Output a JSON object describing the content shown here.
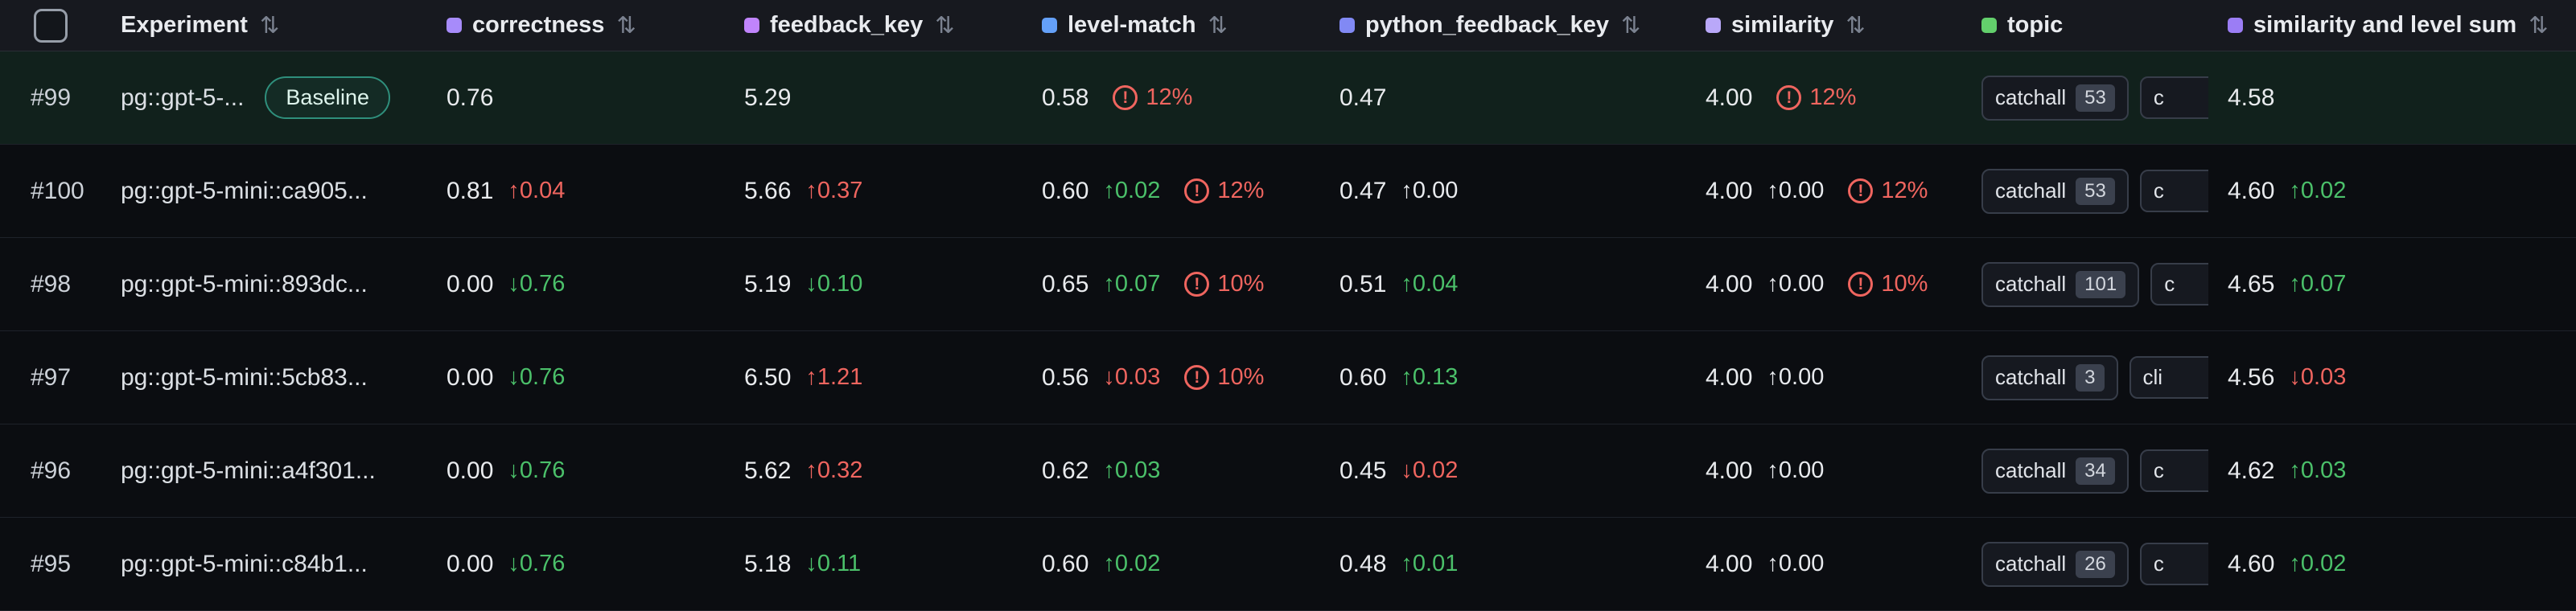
{
  "colors": {
    "good": "#4bc06a",
    "bad": "#ef655f",
    "flat": "#e8eaee",
    "warn": "#ef655f"
  },
  "icons": {
    "sort": "⇅",
    "warning_mark": "!"
  },
  "header": {
    "experiment": {
      "label": "Experiment"
    },
    "metrics": [
      {
        "label": "correctness",
        "swatch": "#a78bfa"
      },
      {
        "label": "feedback_key",
        "swatch": "#c084fc"
      },
      {
        "label": "level-match",
        "swatch": "#64a0f8"
      },
      {
        "label": "python_feedback_key",
        "swatch": "#8189f4"
      },
      {
        "label": "similarity",
        "swatch": "#b9a8f9"
      },
      {
        "label": "topic",
        "swatch": "#63cf6c"
      },
      {
        "label": "similarity and level sum",
        "swatch": "#9b7df5"
      }
    ]
  },
  "rows": [
    {
      "id": "#99",
      "name": "pg::gpt-5-...",
      "baseline_label": "Baseline",
      "correctness": {
        "value": "0.76"
      },
      "feedback_key": {
        "value": "5.29"
      },
      "level_match": {
        "value": "0.58",
        "warning": "12%"
      },
      "python_feedback_key": {
        "value": "0.47"
      },
      "similarity": {
        "value": "4.00",
        "warning": "12%"
      },
      "topics": [
        {
          "label": "catchall",
          "count": "53"
        },
        {
          "label": "c",
          "count": ""
        }
      ],
      "sum": {
        "value": "4.58"
      }
    },
    {
      "id": "#100",
      "name": "pg::gpt-5-mini::ca905...",
      "correctness": {
        "value": "0.81",
        "delta": "↑0.04",
        "tone": "bad"
      },
      "feedback_key": {
        "value": "5.66",
        "delta": "↑0.37",
        "tone": "bad"
      },
      "level_match": {
        "value": "0.60",
        "delta": "↑0.02",
        "tone": "good",
        "warning": "12%"
      },
      "python_feedback_key": {
        "value": "0.47",
        "delta": "↑0.00",
        "tone": "flat"
      },
      "similarity": {
        "value": "4.00",
        "delta": "↑0.00",
        "tone": "flat",
        "warning": "12%"
      },
      "topics": [
        {
          "label": "catchall",
          "count": "53"
        },
        {
          "label": "c",
          "count": ""
        }
      ],
      "sum": {
        "value": "4.60",
        "delta": "↑0.02",
        "tone": "good"
      }
    },
    {
      "id": "#98",
      "name": "pg::gpt-5-mini::893dc...",
      "correctness": {
        "value": "0.00",
        "delta": "↓0.76",
        "tone": "good"
      },
      "feedback_key": {
        "value": "5.19",
        "delta": "↓0.10",
        "tone": "good"
      },
      "level_match": {
        "value": "0.65",
        "delta": "↑0.07",
        "tone": "good",
        "warning": "10%"
      },
      "python_feedback_key": {
        "value": "0.51",
        "delta": "↑0.04",
        "tone": "good"
      },
      "similarity": {
        "value": "4.00",
        "delta": "↑0.00",
        "tone": "flat",
        "warning": "10%"
      },
      "topics": [
        {
          "label": "catchall",
          "count": "101"
        },
        {
          "label": "c",
          "count": ""
        }
      ],
      "sum": {
        "value": "4.65",
        "delta": "↑0.07",
        "tone": "good"
      }
    },
    {
      "id": "#97",
      "name": "pg::gpt-5-mini::5cb83...",
      "correctness": {
        "value": "0.00",
        "delta": "↓0.76",
        "tone": "good"
      },
      "feedback_key": {
        "value": "6.50",
        "delta": "↑1.21",
        "tone": "bad"
      },
      "level_match": {
        "value": "0.56",
        "delta": "↓0.03",
        "tone": "bad",
        "warning": "10%"
      },
      "python_feedback_key": {
        "value": "0.60",
        "delta": "↑0.13",
        "tone": "good"
      },
      "similarity": {
        "value": "4.00",
        "delta": "↑0.00",
        "tone": "flat"
      },
      "topics": [
        {
          "label": "catchall",
          "count": "3"
        },
        {
          "label": "cli",
          "count": ""
        }
      ],
      "sum": {
        "value": "4.56",
        "delta": "↓0.03",
        "tone": "bad"
      }
    },
    {
      "id": "#96",
      "name": "pg::gpt-5-mini::a4f301...",
      "correctness": {
        "value": "0.00",
        "delta": "↓0.76",
        "tone": "good"
      },
      "feedback_key": {
        "value": "5.62",
        "delta": "↑0.32",
        "tone": "bad"
      },
      "level_match": {
        "value": "0.62",
        "delta": "↑0.03",
        "tone": "good"
      },
      "python_feedback_key": {
        "value": "0.45",
        "delta": "↓0.02",
        "tone": "bad"
      },
      "similarity": {
        "value": "4.00",
        "delta": "↑0.00",
        "tone": "flat"
      },
      "topics": [
        {
          "label": "catchall",
          "count": "34"
        },
        {
          "label": "c",
          "count": ""
        }
      ],
      "sum": {
        "value": "4.62",
        "delta": "↑0.03",
        "tone": "good"
      }
    },
    {
      "id": "#95",
      "name": "pg::gpt-5-mini::c84b1...",
      "correctness": {
        "value": "0.00",
        "delta": "↓0.76",
        "tone": "good"
      },
      "feedback_key": {
        "value": "5.18",
        "delta": "↓0.11",
        "tone": "good"
      },
      "level_match": {
        "value": "0.60",
        "delta": "↑0.02",
        "tone": "good"
      },
      "python_feedback_key": {
        "value": "0.48",
        "delta": "↑0.01",
        "tone": "good"
      },
      "similarity": {
        "value": "4.00",
        "delta": "↑0.00",
        "tone": "flat"
      },
      "topics": [
        {
          "label": "catchall",
          "count": "26"
        },
        {
          "label": "c",
          "count": ""
        }
      ],
      "sum": {
        "value": "4.60",
        "delta": "↑0.02",
        "tone": "good"
      }
    }
  ]
}
